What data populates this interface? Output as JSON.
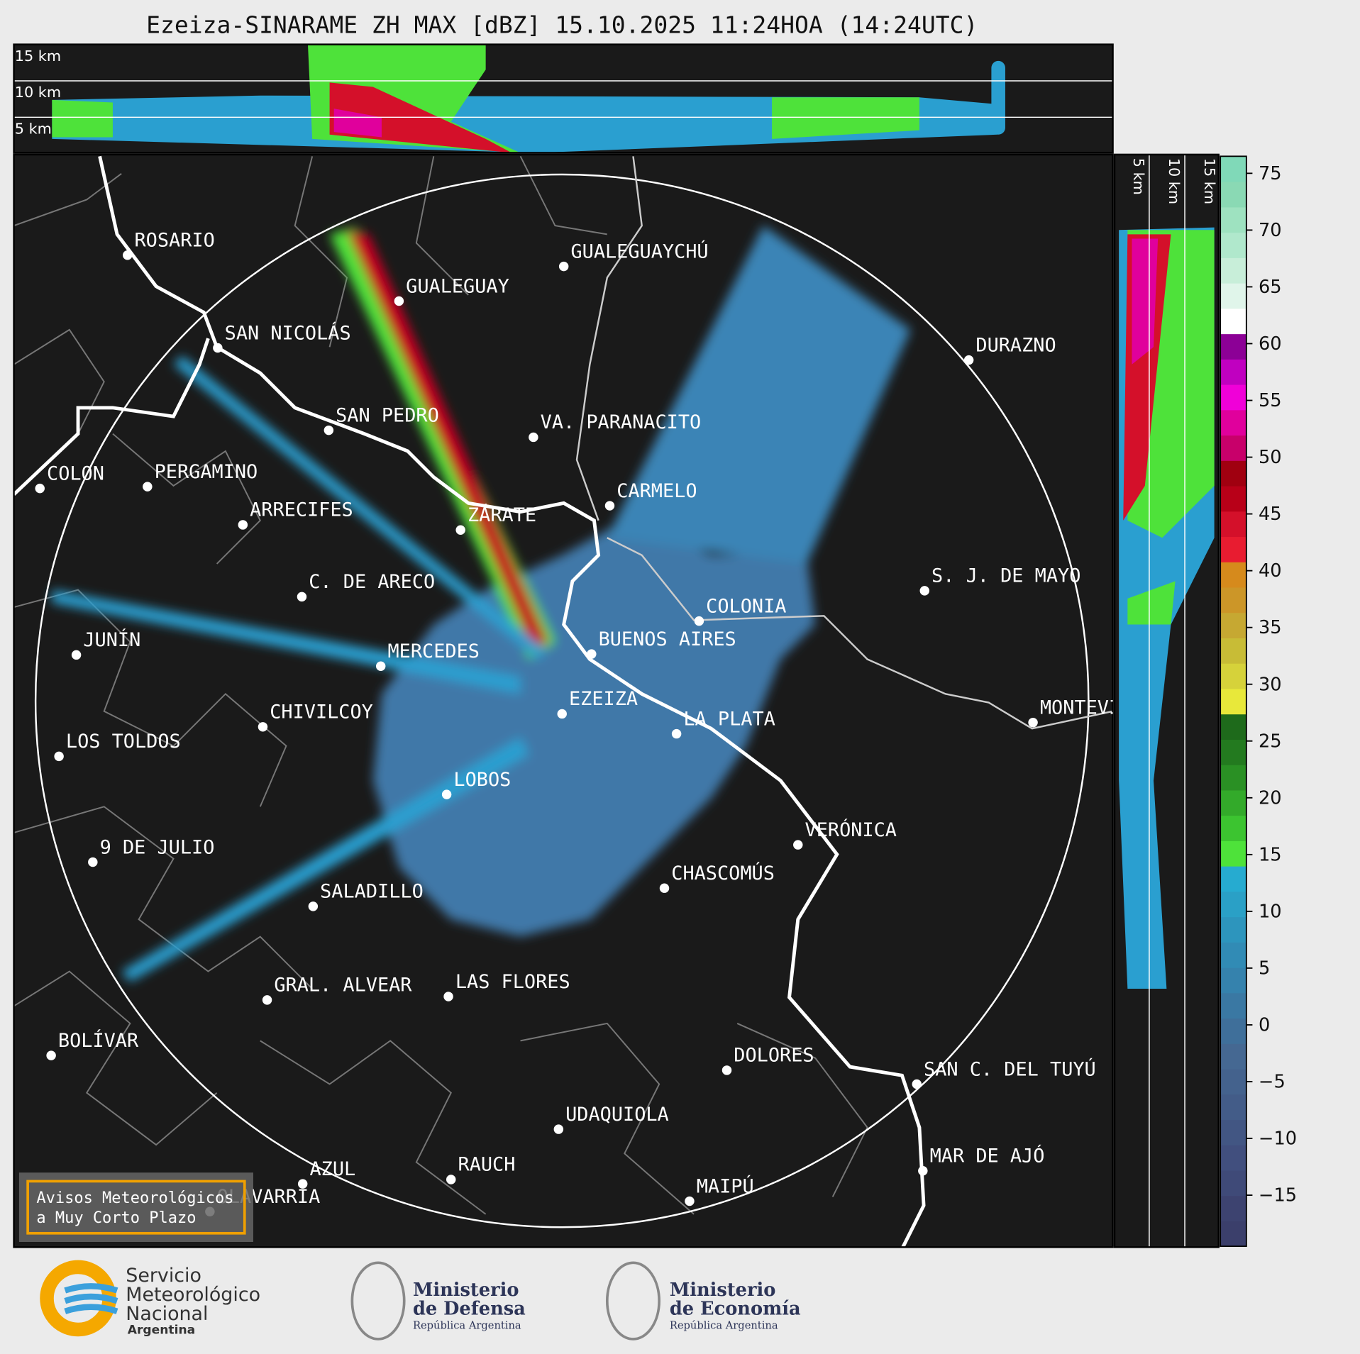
{
  "title": "Ezeiza-SINARAME ZH MAX [dBZ] 15.10.2025 11:24HOA (14:24UTC)",
  "top_panel": {
    "height_labels": [
      "15 km",
      "10 km",
      "5 km"
    ]
  },
  "side_panel": {
    "height_labels": [
      "5 km",
      "10 km",
      "15 km"
    ]
  },
  "cities": [
    "ROSARIO",
    "GUALEGUAYCHÚ",
    "GUALEGUAY",
    "SAN NICOLÁS",
    "DURAZNO",
    "SAN PEDRO",
    "VA. PARANACITO",
    "COLON",
    "PERGAMINO",
    "CARMELO",
    "ARRECIFES",
    "ZÁRATE",
    "S. J. DE MAYO",
    "C. DE ARECO",
    "COLONIA",
    "JUNÍN",
    "BUENOS AIRES",
    "MERCEDES",
    "MONTEVIDEO",
    "EZEIZA",
    "CHIVILCOY",
    "LA PLATA",
    "LOS TOLDOS",
    "LOBOS",
    "VERÓNICA",
    "9 DE JULIO",
    "CHASCOMÚS",
    "SALADILLO",
    "GRAL. ALVEAR",
    "LAS FLORES",
    "BOLÍVAR",
    "DOLORES",
    "SAN C. DEL TUYÚ",
    "UDAQUIOLA",
    "MAR DE AJÓ",
    "RAUCH",
    "AZUL",
    "OLAVARRÍA",
    "MAIPÚ"
  ],
  "notice": [
    "Avisos Meteorológicos",
    "a Muy Corto Plazo"
  ],
  "colorbar": {
    "ylim": [
      -19.5,
      76.5
    ],
    "yticks": [
      {
        "value": -15,
        "label": "−15"
      },
      {
        "value": -10,
        "label": "−10"
      },
      {
        "value": -5,
        "label": "−5"
      },
      0,
      5,
      10,
      15,
      20,
      25,
      30,
      35,
      40,
      45,
      50,
      55,
      60,
      65,
      70,
      75
    ],
    "colors": [
      "#3b3f6b",
      "#3d4370",
      "#3f4a78",
      "#414f7e",
      "#425683",
      "#435c88",
      "#44628d",
      "#456892",
      "#3f6f9a",
      "#3a78a3",
      "#3582ad",
      "#318bb5",
      "#2d95bd",
      "#2aa0c6",
      "#26abd0",
      "#4ee23a",
      "#3cc430",
      "#33aa2a",
      "#2a9024",
      "#237a1f",
      "#1e6a1b",
      "#e8e83a",
      "#d6d23a",
      "#c8bc36",
      "#c6a832",
      "#cc9628",
      "#d68a1c",
      "#e81c30",
      "#d4102a",
      "#b80018",
      "#a00010",
      "#c8006a",
      "#e0009c",
      "#f000d8",
      "#c000c0",
      "#8c0096",
      "#ffffff",
      "#e0f5ea",
      "#c8eed9",
      "#b0e8cc",
      "#9ee2c0",
      "#8ad9b4",
      "#80d9b8"
    ]
  },
  "logos": {
    "smn": [
      "Servicio",
      "Meteorológico",
      "Nacional",
      "Argentina"
    ],
    "defensa": [
      "Ministerio",
      "de Defensa",
      "República Argentina"
    ],
    "economia": [
      "Ministerio",
      "de Economía",
      "República Argentina"
    ]
  }
}
